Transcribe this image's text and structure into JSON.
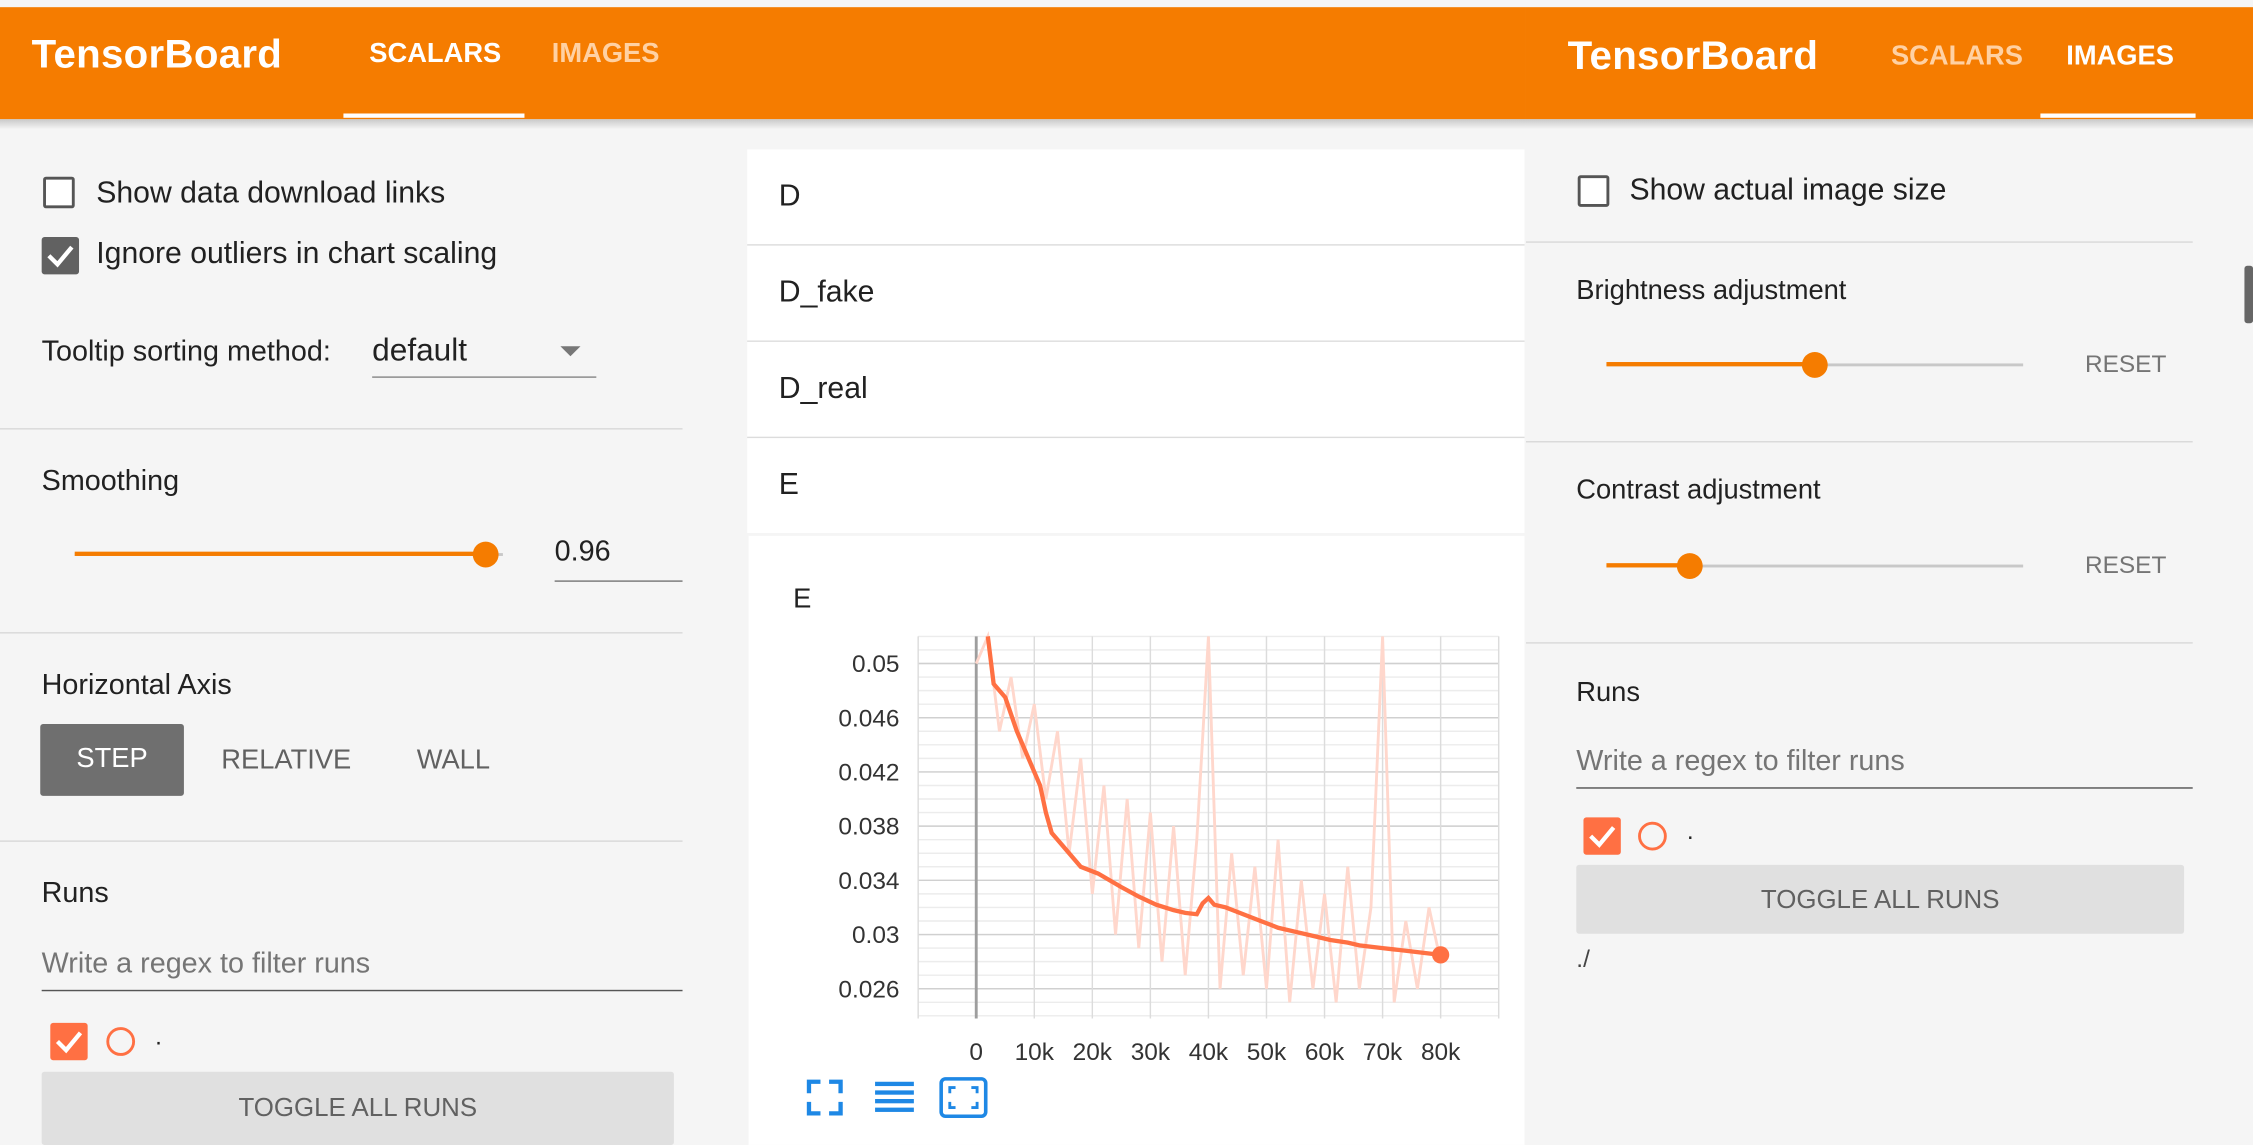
{
  "left_panel": {
    "header": {
      "brand": "TensorBoard",
      "tabs": [
        {
          "label": "SCALARS",
          "active": true
        },
        {
          "label": "IMAGES",
          "active": false
        }
      ]
    },
    "show_download_links": {
      "label": "Show data download links",
      "checked": false
    },
    "ignore_outliers": {
      "label": "Ignore outliers in chart scaling",
      "checked": true
    },
    "tooltip_sorting": {
      "label": "Tooltip sorting method:",
      "value": "default"
    },
    "smoothing": {
      "label": "Smoothing",
      "value": "0.96",
      "fraction": 0.96
    },
    "horizontal_axis": {
      "label": "Horizontal Axis",
      "options": [
        "STEP",
        "RELATIVE",
        "WALL"
      ],
      "selected": "STEP"
    },
    "runs": {
      "label": "Runs",
      "filter_placeholder": "Write a regex to filter runs",
      "run_name": ".",
      "toggle_label": "TOGGLE ALL RUNS"
    }
  },
  "center_panel": {
    "categories": [
      "D",
      "D_fake",
      "D_real",
      "E"
    ],
    "chart_card": {
      "title": "E"
    }
  },
  "right_panel": {
    "header": {
      "brand": "TensorBoard",
      "tabs": [
        {
          "label": "SCALARS",
          "active": false
        },
        {
          "label": "IMAGES",
          "active": true
        }
      ]
    },
    "show_actual_size": {
      "label": "Show actual image size",
      "checked": false
    },
    "brightness": {
      "label": "Brightness adjustment",
      "reset": "RESET",
      "fraction": 0.5
    },
    "contrast": {
      "label": "Contrast adjustment",
      "reset": "RESET",
      "fraction": 0.2
    },
    "runs": {
      "label": "Runs",
      "filter_placeholder": "Write a regex to filter runs",
      "run_name": ".",
      "toggle_label": "TOGGLE ALL RUNS",
      "run_path": "./"
    }
  },
  "icons": [
    "fit-domain-icon",
    "log-scale-icon",
    "zoom-extent-icon",
    "checkmark-icon",
    "dropdown-arrow-icon"
  ],
  "colors": {
    "brand_orange": "#f57c00",
    "run_orange": "#ff7043",
    "raw_line": "#ffd7cc",
    "step_button": "#6f6f6f"
  },
  "chart_data": {
    "type": "line",
    "title": "E",
    "x_ticks": [
      "0",
      "10k",
      "20k",
      "30k",
      "40k",
      "50k",
      "60k",
      "70k",
      "80k"
    ],
    "y_ticks": [
      "0.05",
      "0.046",
      "0.042",
      "0.038",
      "0.034",
      "0.03",
      "0.026"
    ],
    "xlim": [
      -10000,
      90000
    ],
    "ylim": [
      0.0238,
      0.052
    ],
    "grid": true,
    "series": [
      {
        "role": "smoothed",
        "x": [
          2000,
          3000,
          5000,
          7000,
          9000,
          11000,
          12000,
          13000,
          15000,
          18000,
          21000,
          25000,
          28000,
          31000,
          34000,
          36000,
          38000,
          39000,
          40000,
          41000,
          43000,
          46000,
          49000,
          52000,
          55000,
          58000,
          61000,
          64000,
          66000,
          68000,
          70000,
          72000,
          74000,
          76000,
          78000,
          80000
        ],
        "y": [
          0.052,
          0.0485,
          0.0475,
          0.045,
          0.043,
          0.041,
          0.039,
          0.0375,
          0.0365,
          0.035,
          0.0345,
          0.0335,
          0.0328,
          0.0322,
          0.0318,
          0.0316,
          0.0315,
          0.0323,
          0.0327,
          0.0322,
          0.032,
          0.0315,
          0.031,
          0.0305,
          0.0302,
          0.0299,
          0.0296,
          0.0294,
          0.0292,
          0.0291,
          0.029,
          0.0289,
          0.0288,
          0.0287,
          0.0286,
          0.0285
        ]
      },
      {
        "role": "raw",
        "x": [
          0,
          2000,
          4000,
          6000,
          8000,
          10000,
          12000,
          14000,
          16000,
          18000,
          20000,
          22000,
          24000,
          26000,
          28000,
          30000,
          32000,
          34000,
          36000,
          38000,
          40000,
          42000,
          44000,
          46000,
          48000,
          50000,
          52000,
          54000,
          56000,
          58000,
          60000,
          62000,
          64000,
          66000,
          68000,
          70000,
          72000,
          74000,
          76000,
          78000,
          80000
        ],
        "y": [
          0.05,
          0.052,
          0.045,
          0.049,
          0.043,
          0.047,
          0.04,
          0.045,
          0.036,
          0.043,
          0.033,
          0.041,
          0.03,
          0.04,
          0.029,
          0.039,
          0.028,
          0.038,
          0.027,
          0.037,
          0.052,
          0.026,
          0.036,
          0.027,
          0.035,
          0.026,
          0.037,
          0.025,
          0.034,
          0.026,
          0.033,
          0.025,
          0.035,
          0.026,
          0.032,
          0.052,
          0.025,
          0.031,
          0.026,
          0.032,
          0.028
        ]
      }
    ]
  }
}
